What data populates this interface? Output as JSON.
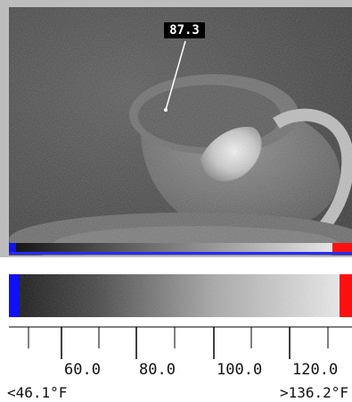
{
  "thermal_image": {
    "spot_reading": "87.3"
  },
  "color_scale": {
    "colors": {
      "low": "#1010ff",
      "high": "#ff1010",
      "dark": "#111111",
      "light": "#f2f2f2"
    },
    "tick_labels": [
      "60.0",
      "80.0",
      "100.0",
      "120.0"
    ],
    "min_label": "<46.1°F",
    "max_label": ">136.2°F"
  }
}
